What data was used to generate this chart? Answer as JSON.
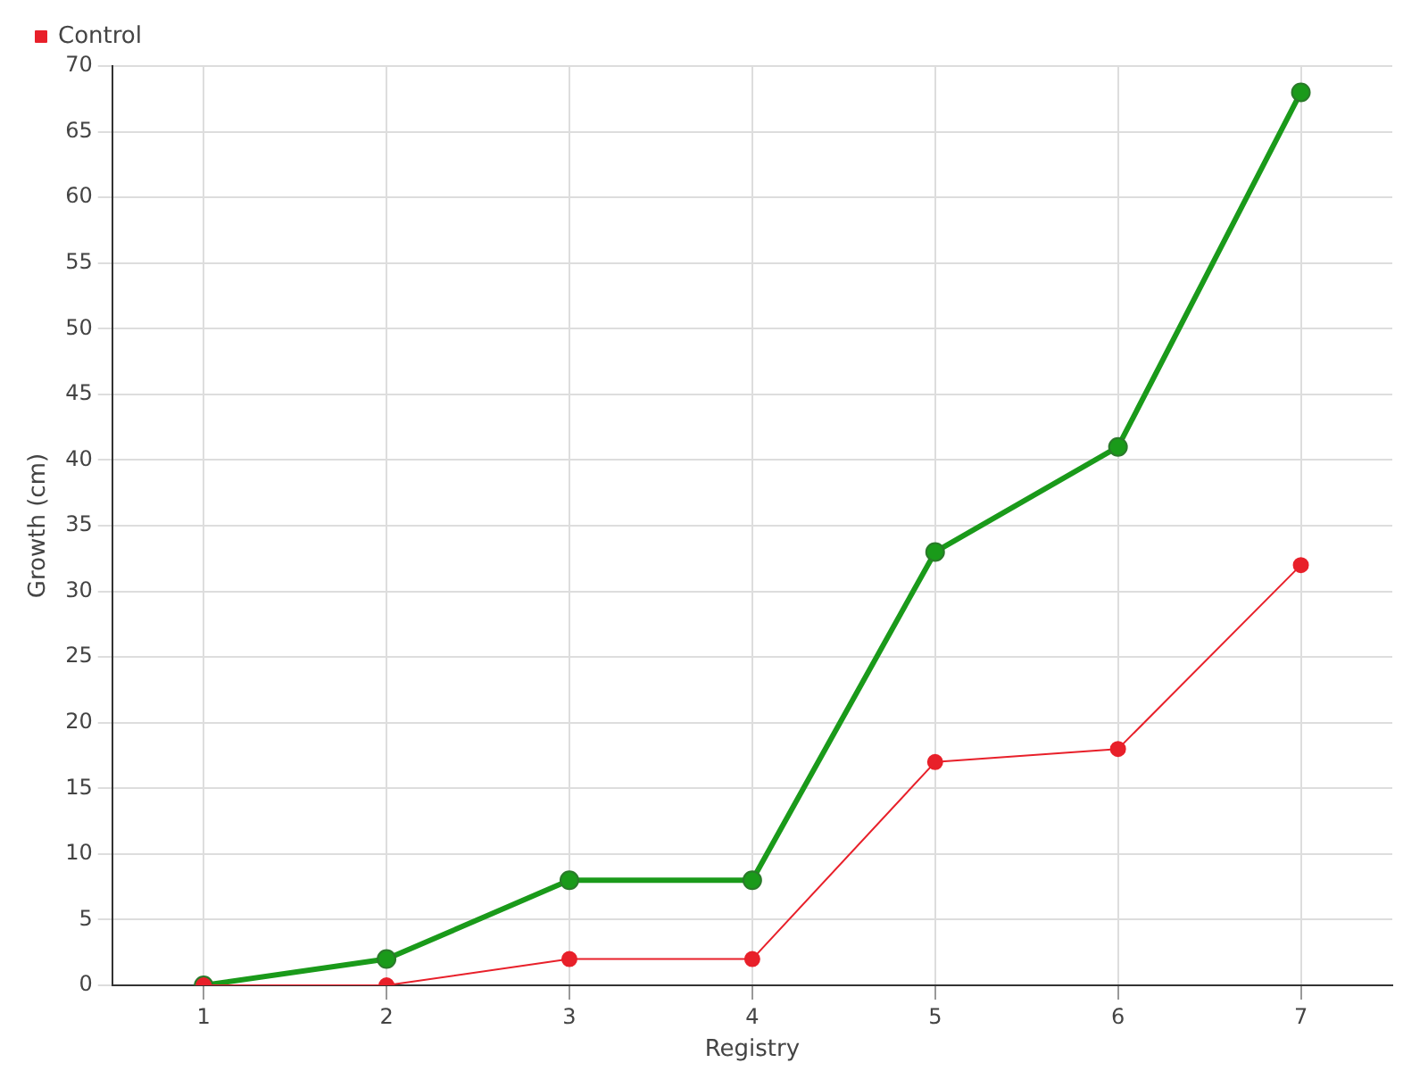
{
  "chart_data": {
    "type": "line",
    "xlabel": "Registry",
    "ylabel": "Growth (cm)",
    "categories": [
      "1",
      "2",
      "3",
      "4",
      "5",
      "6",
      "7"
    ],
    "series": [
      {
        "color": "#1a9a1a",
        "values": [
          0,
          2,
          8,
          8,
          33,
          41,
          68
        ]
      },
      {
        "name": "Control",
        "color": "#e8202a",
        "values": [
          0,
          0,
          2,
          2,
          17,
          18,
          32
        ]
      }
    ],
    "ylim": [
      0,
      70
    ],
    "yticks": [
      0,
      5,
      10,
      15,
      20,
      25,
      30,
      35,
      40,
      45,
      50,
      55,
      60,
      65,
      70
    ],
    "grid": true,
    "legend": "top left",
    "marker": "circle"
  }
}
